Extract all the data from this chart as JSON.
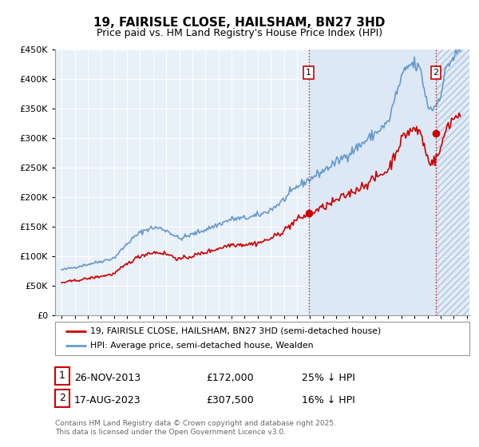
{
  "title": "19, FAIRISLE CLOSE, HAILSHAM, BN27 3HD",
  "subtitle": "Price paid vs. HM Land Registry's House Price Index (HPI)",
  "ylim": [
    0,
    450000
  ],
  "xlim_start": 1994.5,
  "xlim_end": 2026.2,
  "background_color": "#ffffff",
  "plot_bg_color": "#e8f0f8",
  "grid_color": "#ffffff",
  "hpi_color": "#6699cc",
  "price_color": "#cc0000",
  "shade_fill_color": "#dce8f5",
  "shade_hatch_color": "#c0cfe0",
  "marker1_date": 2013.9,
  "marker1_price": 172000,
  "marker1_hpi": 229000,
  "marker1_label": "26-NOV-2013",
  "marker1_value_label": "£172,000",
  "marker1_hpi_label": "25% ↓ HPI",
  "marker2_date": 2023.63,
  "marker2_price": 307500,
  "marker2_hpi": 366000,
  "marker2_label": "17-AUG-2023",
  "marker2_value_label": "£307,500",
  "marker2_hpi_label": "16% ↓ HPI",
  "legend_price_label": "19, FAIRISLE CLOSE, HAILSHAM, BN27 3HD (semi-detached house)",
  "legend_hpi_label": "HPI: Average price, semi-detached house, Wealden",
  "footnote": "Contains HM Land Registry data © Crown copyright and database right 2025.\nThis data is licensed under the Open Government Licence v3.0.",
  "yticks": [
    0,
    50000,
    100000,
    150000,
    200000,
    250000,
    300000,
    350000,
    400000,
    450000
  ],
  "ytick_labels": [
    "£0",
    "£50K",
    "£100K",
    "£150K",
    "£200K",
    "£250K",
    "£300K",
    "£350K",
    "£400K",
    "£450K"
  ]
}
